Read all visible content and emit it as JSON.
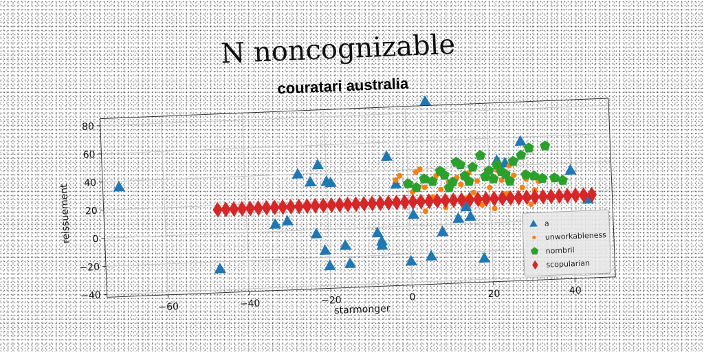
{
  "chart_data": {
    "type": "scatter",
    "title": "N noncognizable",
    "subtitle": "couratari australia",
    "xlabel": "starmonger",
    "ylabel": "reissuement",
    "xlim": [
      -75,
      50
    ],
    "ylim": [
      -42,
      85
    ],
    "xticks": [
      -60,
      -40,
      -20,
      0,
      20,
      40
    ],
    "yticks": [
      -40,
      -20,
      0,
      20,
      40,
      60,
      80
    ],
    "grid": true,
    "legend_position": "lower-right",
    "series": [
      {
        "name": "a",
        "marker": "triangle",
        "color": "#1f77b4",
        "points": [
          [
            -71,
            36
          ],
          [
            -47,
            -25
          ],
          [
            -33,
            5
          ],
          [
            -30,
            7
          ],
          [
            -27,
            40
          ],
          [
            -24,
            34
          ],
          [
            -23,
            -3
          ],
          [
            -22,
            46
          ],
          [
            -21,
            -15
          ],
          [
            -20,
            34
          ],
          [
            -20,
            -26
          ],
          [
            -19,
            33
          ],
          [
            -16,
            -12
          ],
          [
            -15,
            -25
          ],
          [
            -8,
            -4
          ],
          [
            -7,
            -10
          ],
          [
            -7,
            -13
          ],
          [
            -5,
            50
          ],
          [
            -3,
            30
          ],
          [
            0,
            -25
          ],
          [
            1,
            8
          ],
          [
            5,
            88
          ],
          [
            5,
            -22
          ],
          [
            8,
            -5
          ],
          [
            12,
            4
          ],
          [
            14,
            12
          ],
          [
            15,
            5
          ],
          [
            18,
            -25
          ],
          [
            22,
            44
          ],
          [
            24,
            42
          ],
          [
            28,
            57
          ],
          [
            40,
            35
          ],
          [
            44,
            14
          ]
        ]
      },
      {
        "name": "unworkableness",
        "marker": "circle",
        "color": "#ff7f0e",
        "points": [
          [
            -3,
            33
          ],
          [
            -2,
            36
          ],
          [
            0,
            30
          ],
          [
            1,
            24
          ],
          [
            2,
            38
          ],
          [
            3,
            40
          ],
          [
            4,
            27
          ],
          [
            4,
            10
          ],
          [
            5,
            32
          ],
          [
            6,
            20
          ],
          [
            7,
            35
          ],
          [
            8,
            25
          ],
          [
            9,
            12
          ],
          [
            10,
            30
          ],
          [
            11,
            15
          ],
          [
            12,
            33
          ],
          [
            13,
            28
          ],
          [
            14,
            18
          ],
          [
            15,
            36
          ],
          [
            16,
            22
          ],
          [
            17,
            30
          ],
          [
            18,
            13
          ],
          [
            19,
            34
          ],
          [
            20,
            25
          ],
          [
            21,
            10
          ],
          [
            22,
            37
          ],
          [
            23,
            30
          ],
          [
            24,
            20
          ],
          [
            25,
            40
          ],
          [
            26,
            33
          ],
          [
            27,
            15
          ],
          [
            28,
            24
          ],
          [
            29,
            30
          ],
          [
            30,
            12
          ],
          [
            31,
            22
          ],
          [
            32,
            28
          ]
        ]
      },
      {
        "name": "nombril",
        "marker": "pentagon",
        "color": "#2ca02c",
        "points": [
          [
            0,
            30
          ],
          [
            2,
            27
          ],
          [
            4,
            33
          ],
          [
            6,
            31
          ],
          [
            8,
            38
          ],
          [
            9,
            35
          ],
          [
            10,
            26
          ],
          [
            11,
            30
          ],
          [
            12,
            44
          ],
          [
            13,
            42
          ],
          [
            14,
            34
          ],
          [
            15,
            30
          ],
          [
            16,
            40
          ],
          [
            18,
            48
          ],
          [
            19,
            33
          ],
          [
            20,
            37
          ],
          [
            21,
            31
          ],
          [
            22,
            41
          ],
          [
            23,
            36
          ],
          [
            24,
            34
          ],
          [
            25,
            29
          ],
          [
            26,
            43
          ],
          [
            28,
            47
          ],
          [
            29,
            33
          ],
          [
            30,
            52
          ],
          [
            31,
            32
          ],
          [
            33,
            30
          ],
          [
            34,
            53
          ],
          [
            36,
            30
          ],
          [
            38,
            28
          ]
        ]
      },
      {
        "name": "scopularian",
        "marker": "diamond",
        "color": "#d62728",
        "points": [
          [
            -47,
            17
          ],
          [
            -45,
            17
          ],
          [
            -43,
            17
          ],
          [
            -41,
            17
          ],
          [
            -39,
            17
          ],
          [
            -37,
            17
          ],
          [
            -35,
            17
          ],
          [
            -33,
            17
          ],
          [
            -31,
            17
          ],
          [
            -29,
            17
          ],
          [
            -27,
            17
          ],
          [
            -25,
            17
          ],
          [
            -23,
            17
          ],
          [
            -21,
            17
          ],
          [
            -19,
            17
          ],
          [
            -17,
            17
          ],
          [
            -15,
            17
          ],
          [
            -13,
            17
          ],
          [
            -11,
            17
          ],
          [
            -9,
            17
          ],
          [
            -7,
            17
          ],
          [
            -5,
            17
          ],
          [
            -3,
            17
          ],
          [
            -1,
            17
          ],
          [
            1,
            17
          ],
          [
            3,
            17
          ],
          [
            5,
            17
          ],
          [
            7,
            17
          ],
          [
            9,
            17
          ],
          [
            11,
            17
          ],
          [
            13,
            17
          ],
          [
            15,
            17
          ],
          [
            17,
            17
          ],
          [
            19,
            17
          ],
          [
            21,
            17
          ],
          [
            23,
            17
          ],
          [
            25,
            17
          ],
          [
            27,
            17
          ],
          [
            29,
            17
          ],
          [
            31,
            17
          ],
          [
            33,
            17
          ],
          [
            35,
            17
          ],
          [
            37,
            17
          ],
          [
            39,
            17
          ],
          [
            41,
            17
          ],
          [
            43,
            17
          ],
          [
            45,
            17
          ]
        ]
      }
    ]
  }
}
